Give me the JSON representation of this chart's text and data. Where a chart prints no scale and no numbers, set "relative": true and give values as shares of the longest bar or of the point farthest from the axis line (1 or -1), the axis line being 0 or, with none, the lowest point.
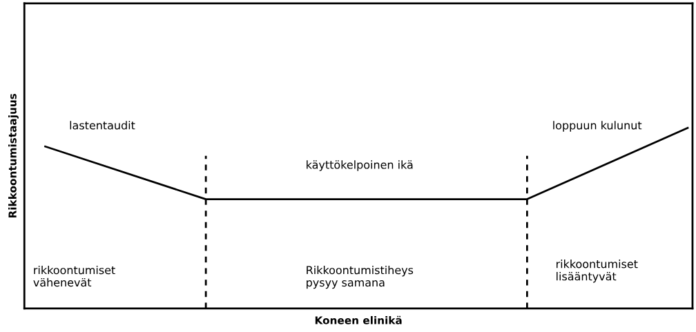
{
  "chart_data": {
    "type": "line",
    "relative": true,
    "xlabel": "Koneen elinikä",
    "ylabel": "Rikkoontumistaajuus",
    "categories": [
      null,
      null,
      null,
      null,
      null
    ],
    "tick_labels": false,
    "series": [
      {
        "color": "#000000",
        "values": [
          0.897,
          0.605,
          0.605,
          0.605,
          1.0
        ]
      }
    ],
    "annotations": [
      "lastentaudit",
      "loppuun kulunut",
      "käyttökelpoinen ikä",
      "rikkoontumiset\nvähenevät",
      "Rikkoontumistiheys\npysyy samana",
      "rikkoontumiset\nlisääntyvät"
    ],
    "marker": "none",
    "line_style": "solid"
  }
}
